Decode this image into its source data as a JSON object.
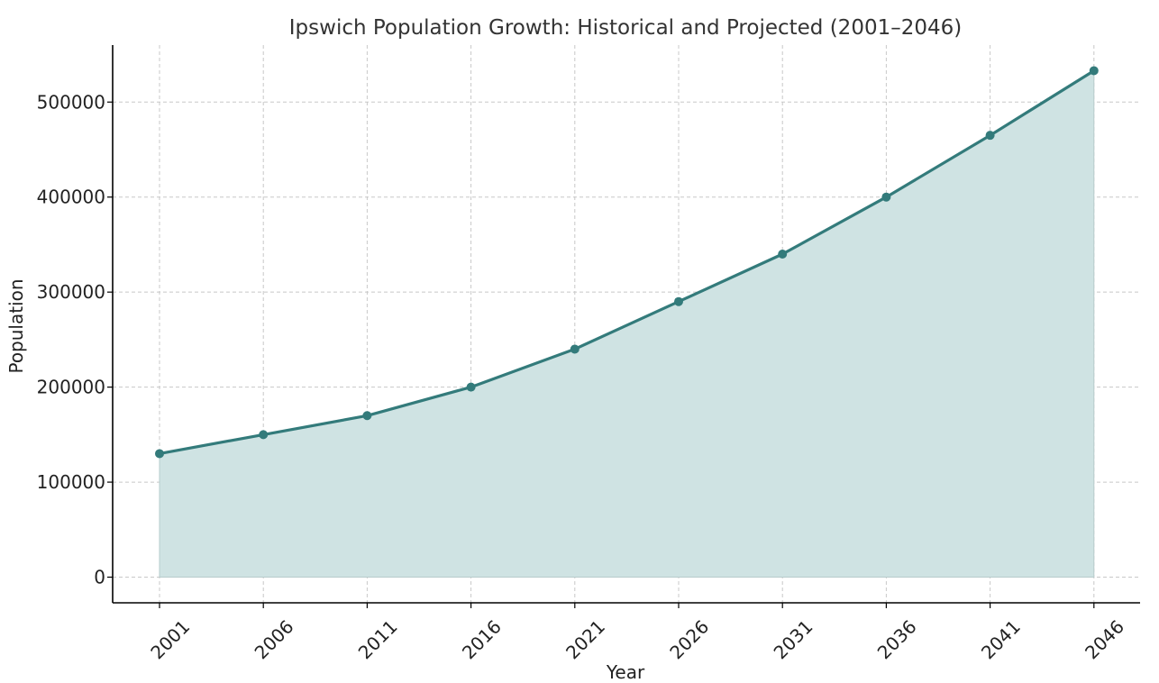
{
  "chart_data": {
    "type": "area",
    "title": "Ipswich Population Growth: Historical and Projected (2001–2046)",
    "xlabel": "Year",
    "ylabel": "Population",
    "x": [
      "2001",
      "2006",
      "2011",
      "2016",
      "2021",
      "2026",
      "2031",
      "2036",
      "2041",
      "2046"
    ],
    "series": [
      {
        "values": [
          130000,
          150000,
          170000,
          200000,
          240000,
          290000,
          340000,
          400000,
          465000,
          533000
        ]
      }
    ],
    "ylim": [
      -27000,
      560000
    ],
    "yticks": [
      0,
      100000,
      200000,
      300000,
      400000,
      500000
    ],
    "grid": true,
    "colors": {
      "line": "#337b7b",
      "fill": "#cfe3e3",
      "marker": "#337b7b"
    }
  }
}
